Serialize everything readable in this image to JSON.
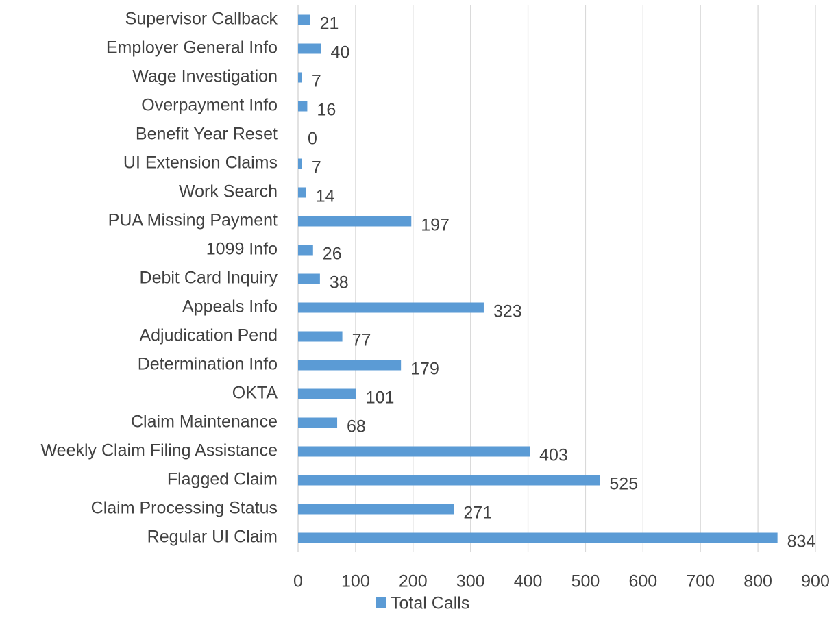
{
  "chart_data": {
    "type": "bar",
    "orientation": "horizontal",
    "categories": [
      "Regular UI Claim",
      "Claim Processing Status",
      "Flagged Claim",
      "Weekly Claim Filing Assistance",
      "Claim Maintenance",
      "OKTA",
      "Determination Info",
      "Adjudication Pend",
      "Appeals Info",
      "Debit Card Inquiry",
      "1099 Info",
      "PUA Missing Payment",
      "Work Search",
      "UI Extension Claims",
      "Benefit Year Reset",
      "Overpayment Info",
      "Wage Investigation",
      "Employer General Info",
      "Supervisor Callback"
    ],
    "series": [
      {
        "name": "Total Calls",
        "color": "#5b9bd5",
        "values": [
          834,
          271,
          525,
          403,
          68,
          101,
          179,
          77,
          323,
          38,
          26,
          197,
          14,
          7,
          0,
          16,
          7,
          40,
          21
        ]
      }
    ],
    "xlim": [
      0,
      900
    ],
    "xticks": [
      0,
      100,
      200,
      300,
      400,
      500,
      600,
      700,
      800,
      900
    ],
    "grid": true,
    "legend": "bottom"
  }
}
